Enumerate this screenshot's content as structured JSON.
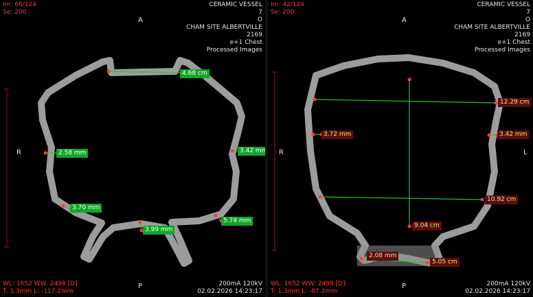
{
  "colors": {
    "label_green": "#12a629",
    "label_maroon": "#5a0e0e",
    "overlay_red": "#ff3333",
    "bone_gray": "#9a9a9a"
  },
  "left": {
    "top_left": [
      "Im: 66/124",
      "Se: 200"
    ],
    "top_right": [
      "CERAMIC VESSEL",
      "7",
      "O",
      "CHAM SITE ALBERTVILLE",
      "2169",
      "e+1 Chest",
      "Processed Images"
    ],
    "bottom_left": [
      "WL: 1652 WW: 2498 [D]",
      "T: 1.3mm L: -117.2mm"
    ],
    "bottom_right": [
      "200mA 120kV",
      "02.02.2026 14:23:17"
    ],
    "orient": {
      "top": "A",
      "left": "R",
      "bottom": "P"
    },
    "measurements": [
      "4.68 cm",
      "2.58 mm",
      "3.42 mm",
      "3.70 mm",
      "3.99 mm",
      "5.74 mm"
    ]
  },
  "right": {
    "top_left": [
      "Im: 42/124",
      "Se: 200"
    ],
    "top_right": [
      "CERAMIC VESSEL",
      "7",
      "O",
      "CHAM SITE ALBERTVILLE",
      "2169",
      "e+1 Chest",
      "Processed Images"
    ],
    "bottom_left": [
      "WL: 1652 WW: 2498 [D]",
      "T: 1.3mm L: -87.2mm"
    ],
    "bottom_right": [
      "200mA 120kV",
      "02.02.2026 14:23:17"
    ],
    "orient": {
      "top": "A",
      "left": "R",
      "right": "L",
      "bottom": "P"
    },
    "measurements": [
      "12.29 cm",
      "3.72 mm",
      "3.42 mm",
      "10.92 cm",
      "9.04 cm",
      "2.08 mm",
      "5.05 cm"
    ]
  }
}
